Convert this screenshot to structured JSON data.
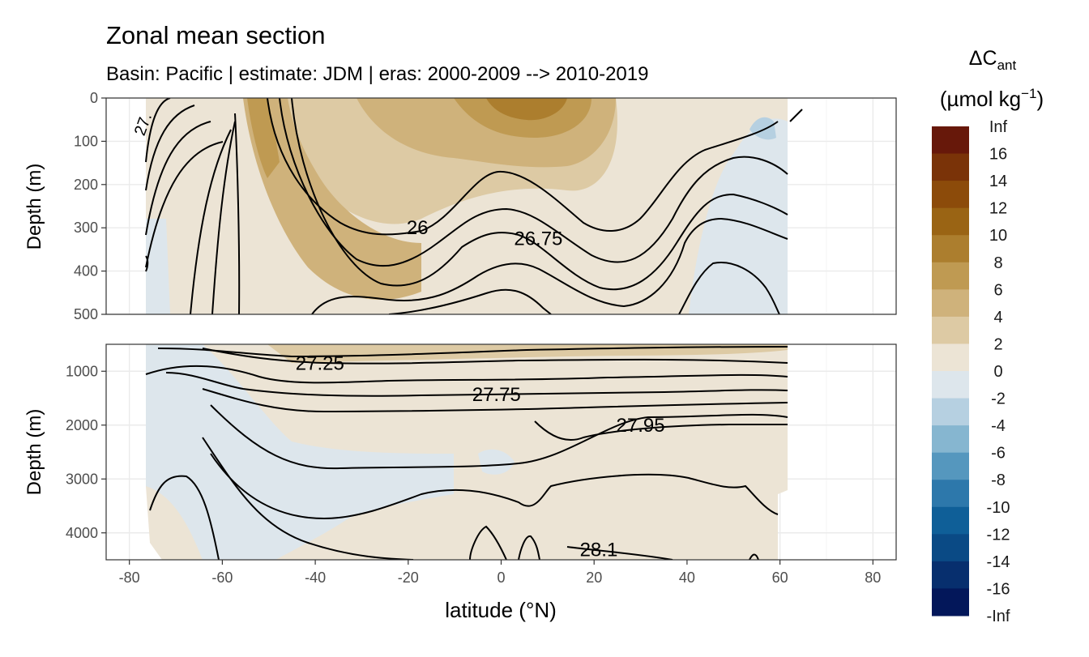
{
  "chart_data": {
    "type": "heatmap",
    "title": "Zonal mean section",
    "subtitle": "Basin: Pacific | estimate: JDM  | eras: 2000-2009 --> 2010-2019",
    "xlabel": "latitude (°N)",
    "ylabel_top": "Depth (m)",
    "ylabel_bottom": "Depth (m)",
    "xlim": [
      -85,
      85
    ],
    "x_ticks": [
      -80,
      -60,
      -40,
      -20,
      0,
      20,
      40,
      60,
      80
    ],
    "panels": [
      {
        "name": "upper",
        "ylim": [
          0,
          500
        ],
        "y_ticks": [
          0,
          100,
          200,
          300,
          400,
          500
        ]
      },
      {
        "name": "lower",
        "ylim": [
          500,
          4500
        ],
        "y_ticks": [
          1000,
          2000,
          3000,
          4000
        ]
      }
    ],
    "legend": {
      "title_main": "ΔC",
      "title_sub": "ant",
      "title_unit": "(µmol kg",
      "title_exp": "−1",
      "title_close": ")",
      "labels": [
        "Inf",
        "16",
        "14",
        "12",
        "10",
        "8",
        "6",
        "4",
        "2",
        "0",
        "-2",
        "-4",
        "-6",
        "-8",
        "-10",
        "-12",
        "-14",
        "-16",
        "-Inf"
      ],
      "colors": [
        "#67180a",
        "#7a3308",
        "#8c4b0a",
        "#9a6414",
        "#ac7e2e",
        "#bf9a52",
        "#cfb27b",
        "#ddcaa4",
        "#ece4d5",
        "#dde6ec",
        "#b6d0e1",
        "#86b6d0",
        "#5597be",
        "#2d78ab",
        "#0f5f98",
        "#0a4a85",
        "#072f6e",
        "#03175a"
      ]
    },
    "contours": [
      {
        "label": "26",
        "x": -18,
        "depth": 300,
        "panel": "upper"
      },
      {
        "label": "26.75",
        "x": 8,
        "depth": 325,
        "panel": "upper"
      },
      {
        "label": "27.25",
        "x": -39,
        "depth": 850,
        "panel": "lower"
      },
      {
        "label": "27.75",
        "x": -1,
        "depth": 1430,
        "panel": "lower"
      },
      {
        "label": "27.95",
        "x": 30,
        "depth": 2000,
        "panel": "lower"
      },
      {
        "label": "28.1",
        "x": 21,
        "depth": 4310,
        "panel": "lower"
      },
      {
        "label": "27.",
        "x": -76,
        "depth": 50,
        "panel": "upper"
      }
    ]
  }
}
